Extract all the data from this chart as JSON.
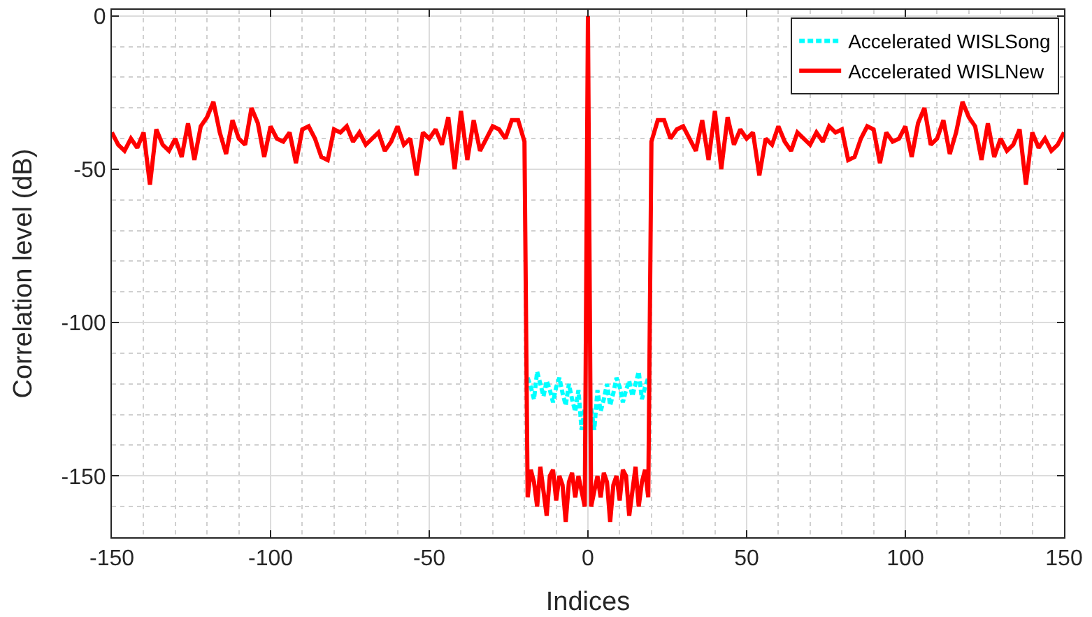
{
  "chart_data": {
    "type": "line",
    "xlabel": "Indices",
    "ylabel": "Correlation level (dB)",
    "xlim": [
      -150,
      150
    ],
    "xticks": [
      -150,
      -100,
      -50,
      0,
      50,
      100,
      150
    ],
    "ylim": [
      -170,
      2
    ],
    "yticks": [
      -150,
      -100,
      -50,
      0
    ],
    "grid": true,
    "legend": "top right",
    "series": [
      {
        "name": "Accelerated WISLSong",
        "color": "#00ffff",
        "line_style": "dashed",
        "x": [
          -19,
          -18,
          -17,
          -16,
          -15,
          -14,
          -13,
          -12,
          -11,
          -10,
          -9,
          -8,
          -7,
          -6,
          -5,
          -4,
          -3,
          -2,
          -1,
          0,
          1,
          2,
          3,
          4,
          5,
          6,
          7,
          8,
          9,
          10,
          11,
          12,
          13,
          14,
          15,
          16,
          17,
          18,
          19
        ],
        "values": [
          -118,
          -121,
          -125,
          -116,
          -120,
          -124,
          -119,
          -122,
          -126,
          -121,
          -118,
          -123,
          -127,
          -120,
          -125,
          -129,
          -122,
          -135,
          -128,
          null,
          -128,
          -135,
          -122,
          -129,
          -125,
          -120,
          -127,
          -123,
          -118,
          -121,
          -126,
          -122,
          -119,
          -124,
          -120,
          -116,
          -125,
          -121,
          -118
        ]
      },
      {
        "name": "Accelerated WISLNew",
        "color": "#ff0000",
        "line_style": "solid",
        "x": [
          -150,
          -148,
          -146,
          -144,
          -142,
          -140,
          -138,
          -136,
          -134,
          -132,
          -130,
          -128,
          -126,
          -124,
          -122,
          -120,
          -118,
          -116,
          -114,
          -112,
          -110,
          -108,
          -106,
          -104,
          -102,
          -100,
          -98,
          -96,
          -94,
          -92,
          -90,
          -88,
          -86,
          -84,
          -82,
          -80,
          -78,
          -76,
          -74,
          -72,
          -70,
          -68,
          -66,
          -64,
          -62,
          -60,
          -58,
          -56,
          -54,
          -52,
          -50,
          -48,
          -46,
          -44,
          -42,
          -40,
          -38,
          -36,
          -34,
          -32,
          -30,
          -28,
          -26,
          -24,
          -22,
          -20,
          -19,
          -18,
          -17,
          -16,
          -15,
          -14,
          -13,
          -12,
          -11,
          -10,
          -9,
          -8,
          -7,
          -6,
          -5,
          -4,
          -3,
          -2,
          -1,
          0,
          1,
          2,
          3,
          4,
          5,
          6,
          7,
          8,
          9,
          10,
          11,
          12,
          13,
          14,
          15,
          16,
          17,
          18,
          19,
          20,
          22,
          24,
          26,
          28,
          30,
          32,
          34,
          36,
          38,
          40,
          42,
          44,
          46,
          48,
          50,
          52,
          54,
          56,
          58,
          60,
          62,
          64,
          66,
          68,
          70,
          72,
          74,
          76,
          78,
          80,
          82,
          84,
          86,
          88,
          90,
          92,
          94,
          96,
          98,
          100,
          102,
          104,
          106,
          108,
          110,
          112,
          114,
          116,
          118,
          120,
          122,
          124,
          126,
          128,
          130,
          132,
          134,
          136,
          138,
          140,
          142,
          144,
          146,
          148,
          150
        ],
        "values": [
          -38,
          -42,
          -44,
          -40,
          -43,
          -38,
          -55,
          -37,
          -42,
          -44,
          -40,
          -46,
          -35,
          -47,
          -36,
          -33,
          -28,
          -38,
          -45,
          -34,
          -40,
          -42,
          -30,
          -35,
          -46,
          -36,
          -40,
          -41,
          -38,
          -48,
          -37,
          -36,
          -40,
          -46,
          -47,
          -37,
          -38,
          -36,
          -41,
          -38,
          -42,
          -40,
          -38,
          -44,
          -41,
          -36,
          -42,
          -40,
          -52,
          -38,
          -40,
          -37,
          -42,
          -33,
          -50,
          -31,
          -47,
          -34,
          -44,
          -40,
          -36,
          -37,
          -40,
          -34,
          -34,
          -41,
          -157,
          -148,
          -152,
          -160,
          -147,
          -155,
          -163,
          -150,
          -148,
          -158,
          -150,
          -153,
          -165,
          -152,
          -149,
          -157,
          -150,
          -155,
          -160,
          0,
          -160,
          -155,
          -150,
          -157,
          -149,
          -152,
          -165,
          -153,
          -150,
          -158,
          -148,
          -150,
          -163,
          -155,
          -147,
          -160,
          -152,
          -148,
          -157,
          -41,
          -34,
          -34,
          -40,
          -37,
          -36,
          -40,
          -44,
          -34,
          -47,
          -31,
          -50,
          -33,
          -42,
          -37,
          -40,
          -38,
          -52,
          -40,
          -42,
          -36,
          -41,
          -44,
          -38,
          -40,
          -42,
          -38,
          -41,
          -36,
          -38,
          -37,
          -47,
          -46,
          -40,
          -36,
          -37,
          -48,
          -38,
          -41,
          -40,
          -36,
          -46,
          -35,
          -30,
          -42,
          -40,
          -34,
          -45,
          -38,
          -28,
          -33,
          -36,
          -47,
          -35,
          -46,
          -40,
          -44,
          -42,
          -37,
          -55,
          -38,
          -43,
          -40,
          -44,
          -42,
          -38
        ]
      }
    ]
  }
}
